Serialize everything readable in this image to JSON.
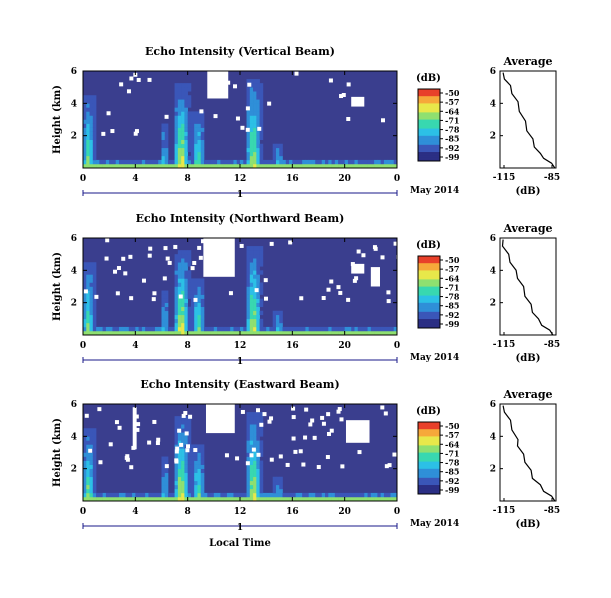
{
  "colors": {
    "background": "#3a3e8e",
    "colormap": [
      "#2b2f84",
      "#3a56b8",
      "#2f8fd8",
      "#2cc0e6",
      "#38d8b0",
      "#8fe070",
      "#e8e84a",
      "#f6a83a",
      "#e8402a"
    ]
  },
  "panels": [
    {
      "title": "Echo Intensity (Vertical Beam)",
      "avg_title": "Average",
      "cb_unit": "(dB)",
      "avg_xlabel": "(dB)",
      "date_label": "May 2014"
    },
    {
      "title": "Echo Intensity (Northward Beam)",
      "avg_title": "Average",
      "cb_unit": "(dB)",
      "avg_xlabel": "(dB)",
      "date_label": "May 2014"
    },
    {
      "title": "Echo Intensity (Eastward Beam)",
      "avg_title": "Average",
      "cb_unit": "(dB)",
      "avg_xlabel": "(dB)",
      "date_label": "May 2014",
      "xlabel": "Local Time"
    }
  ],
  "chart_data": [
    {
      "type": "heatmap",
      "title": "Echo Intensity (Vertical Beam)",
      "ylabel": "Height (km)",
      "xlim": [
        0,
        24
      ],
      "ylim": [
        0,
        6
      ],
      "xticks": [
        "0",
        "4",
        "8",
        "12",
        "16",
        "20",
        "0"
      ],
      "yticks": [
        "2",
        "4",
        "6"
      ],
      "day_label": "1",
      "colorbar": {
        "label": "(dB)",
        "ticks": [
          "-50",
          "-57",
          "-64",
          "-71",
          "-78",
          "-85",
          "-92",
          "-99"
        ]
      },
      "average_profile": {
        "title": "Average",
        "xlabel": "(dB)",
        "xlim": [
          -115,
          -85
        ],
        "xticks": [
          "-115",
          "-85"
        ],
        "yticks": [
          "2",
          "4",
          "6"
        ],
        "dB": [
          -85,
          -88,
          -91,
          -94,
          -96,
          -98,
          -100,
          -102,
          -104,
          -106,
          -108,
          -110,
          -112,
          -114
        ],
        "height_km": [
          0.0,
          0.3,
          0.6,
          0.9,
          1.3,
          1.8,
          2.3,
          2.9,
          3.5,
          4.1,
          4.6,
          5.1,
          5.5,
          5.9
        ]
      }
    },
    {
      "type": "heatmap",
      "title": "Echo Intensity (Northward Beam)",
      "ylabel": "Height (km)",
      "xlim": [
        0,
        24
      ],
      "ylim": [
        0,
        6
      ],
      "xticks": [
        "0",
        "4",
        "8",
        "12",
        "16",
        "20",
        "0"
      ],
      "yticks": [
        "2",
        "4",
        "6"
      ],
      "day_label": "1",
      "colorbar": {
        "label": "(dB)",
        "ticks": [
          "-50",
          "-57",
          "-64",
          "-71",
          "-78",
          "-85",
          "-92",
          "-99"
        ]
      },
      "average_profile": {
        "title": "Average",
        "xlabel": "(dB)",
        "xlim": [
          -115,
          -85
        ],
        "xticks": [
          "-115",
          "-85"
        ],
        "yticks": [
          "2",
          "4",
          "6"
        ],
        "dB": [
          -86,
          -89,
          -92,
          -95,
          -97,
          -99,
          -101,
          -103,
          -105,
          -107,
          -109,
          -111,
          -113,
          -114
        ],
        "height_km": [
          0.0,
          0.3,
          0.6,
          1.0,
          1.4,
          1.9,
          2.4,
          3.0,
          3.5,
          4.0,
          4.5,
          5.0,
          5.5,
          5.9
        ]
      }
    },
    {
      "type": "heatmap",
      "title": "Echo Intensity (Eastward Beam)",
      "xlabel": "Local Time",
      "ylabel": "Height (km)",
      "xlim": [
        0,
        24
      ],
      "ylim": [
        0,
        6
      ],
      "xticks": [
        "0",
        "4",
        "8",
        "12",
        "16",
        "20",
        "0"
      ],
      "yticks": [
        "2",
        "4",
        "6"
      ],
      "day_label": "1",
      "colorbar": {
        "label": "(dB)",
        "ticks": [
          "-50",
          "-57",
          "-64",
          "-71",
          "-78",
          "-85",
          "-92",
          "-99"
        ]
      },
      "average_profile": {
        "title": "Average",
        "xlabel": "(dB)",
        "xlim": [
          -115,
          -85
        ],
        "xticks": [
          "-115",
          "-85"
        ],
        "yticks": [
          "2",
          "4",
          "6"
        ],
        "dB": [
          -85,
          -88,
          -91,
          -94,
          -97,
          -99,
          -101,
          -103,
          -105,
          -106,
          -108,
          -110,
          -112,
          -114
        ],
        "height_km": [
          0.0,
          0.3,
          0.6,
          1.0,
          1.4,
          1.9,
          2.4,
          2.9,
          3.4,
          3.8,
          4.4,
          5.0,
          5.5,
          5.9
        ]
      }
    }
  ]
}
